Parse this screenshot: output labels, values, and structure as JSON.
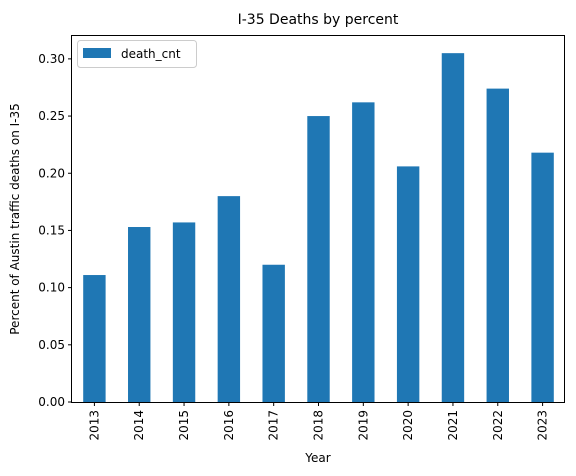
{
  "chart_data": {
    "type": "bar",
    "title": "I-35 Deaths by percent",
    "xlabel": "Year",
    "ylabel": "Percent of Austin traffic deaths on I-35",
    "categories": [
      "2013",
      "2014",
      "2015",
      "2016",
      "2017",
      "2018",
      "2019",
      "2020",
      "2021",
      "2022",
      "2023"
    ],
    "series": [
      {
        "name": "death_cnt",
        "color": "#1f77b4",
        "values": [
          0.111,
          0.153,
          0.157,
          0.18,
          0.12,
          0.25,
          0.262,
          0.206,
          0.305,
          0.274,
          0.218
        ]
      }
    ],
    "ylim": [
      0,
      0.32
    ],
    "yticks": [
      "0.00",
      "0.05",
      "0.10",
      "0.15",
      "0.20",
      "0.25",
      "0.30"
    ],
    "legend_position": "top-left",
    "grid": false
  }
}
